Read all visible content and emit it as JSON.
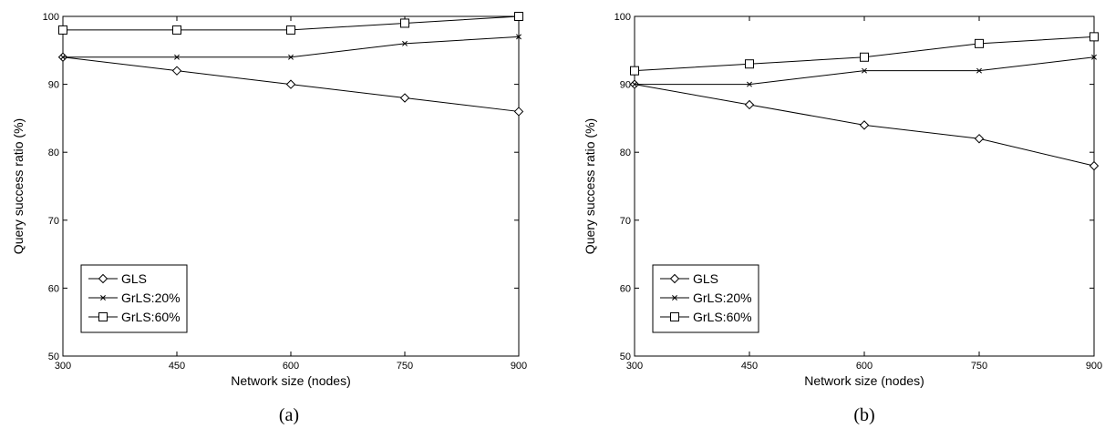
{
  "chart_data": [
    {
      "type": "line",
      "caption": "(a)",
      "xlabel": "Network size (nodes)",
      "ylabel": "Query success ratio (%)",
      "x": [
        300,
        450,
        600,
        750,
        900
      ],
      "xlim": [
        300,
        900
      ],
      "ylim": [
        50,
        100
      ],
      "xticks": [
        "300",
        "450",
        "600",
        "750",
        "900"
      ],
      "yticks": [
        "50",
        "60",
        "70",
        "80",
        "90",
        "100"
      ],
      "grid": false,
      "legend_position": "bottom-left",
      "series": [
        {
          "name": "GLS",
          "marker": "diamond",
          "values": [
            94,
            92,
            90,
            88,
            86
          ]
        },
        {
          "name": "GrLS:20%",
          "marker": "x",
          "values": [
            94,
            94,
            94,
            96,
            97
          ]
        },
        {
          "name": "GrLS:60%",
          "marker": "square",
          "values": [
            98,
            98,
            98,
            99,
            100
          ]
        }
      ]
    },
    {
      "type": "line",
      "caption": "(b)",
      "xlabel": "Network size (nodes)",
      "ylabel": "Query success ratio (%)",
      "x": [
        300,
        450,
        600,
        750,
        900
      ],
      "xlim": [
        300,
        900
      ],
      "ylim": [
        50,
        100
      ],
      "xticks": [
        "300",
        "450",
        "600",
        "750",
        "900"
      ],
      "yticks": [
        "50",
        "60",
        "70",
        "80",
        "90",
        "100"
      ],
      "grid": false,
      "legend_position": "bottom-left",
      "series": [
        {
          "name": "GLS",
          "marker": "diamond",
          "values": [
            90,
            87,
            84,
            82,
            78
          ]
        },
        {
          "name": "GrLS:20%",
          "marker": "x",
          "values": [
            90,
            90,
            92,
            92,
            94
          ]
        },
        {
          "name": "GrLS:60%",
          "marker": "square",
          "values": [
            92,
            93,
            94,
            96,
            97
          ]
        }
      ]
    }
  ]
}
